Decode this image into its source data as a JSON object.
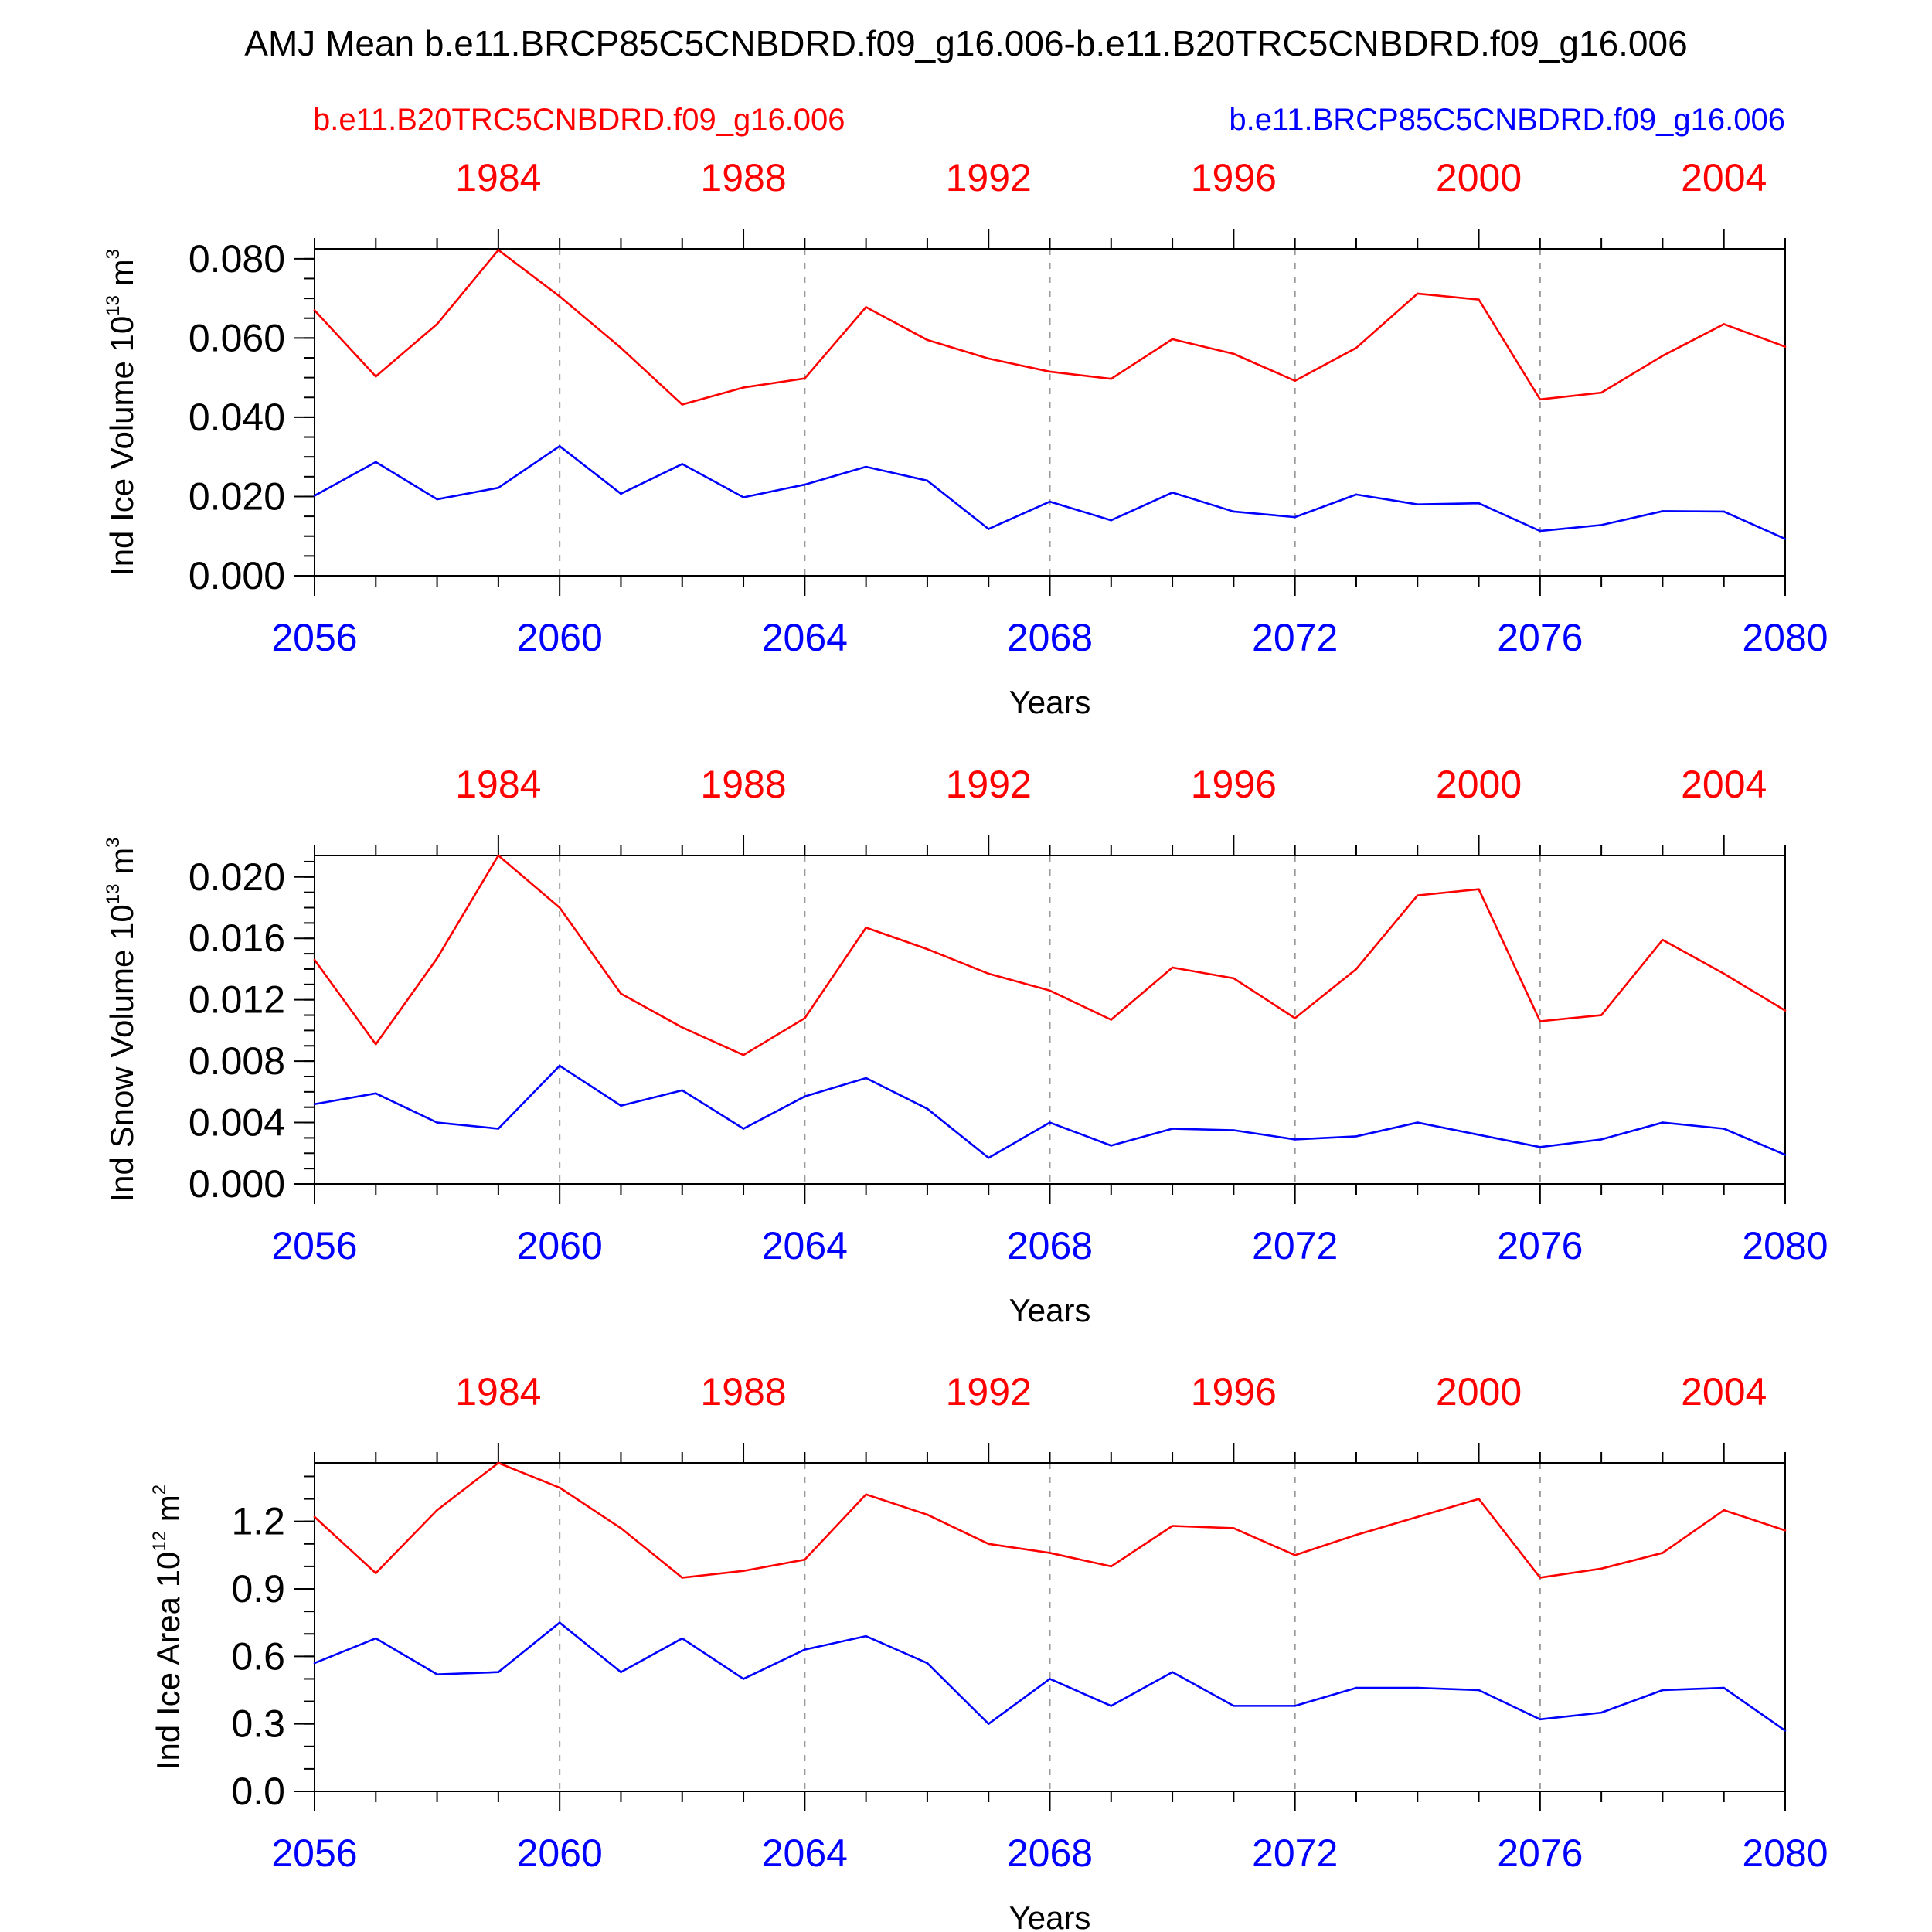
{
  "colors": {
    "red": "#ff0000",
    "blue": "#0000ff",
    "axis": "#000000",
    "grid": "#999999"
  },
  "title": "AMJ Mean b.e11.BRCP85C5CNBDRD.f09_g16.006-b.e11.B20TRC5CNBDRD.f09_g16.006",
  "legend": {
    "red_run": "b.e11.B20TRC5CNBDRD.f09_g16.006",
    "blue_run": "b.e11.BRCP85C5CNBDRD.f09_g16.006"
  },
  "chart_data": [
    {
      "type": "line",
      "ylabel": {
        "main": "Ind Ice Volume 10",
        "sup1": "13",
        "mid": " m",
        "sup2": "3"
      },
      "xlabel": "Years",
      "x": [
        2056,
        2057,
        2058,
        2059,
        2060,
        2061,
        2062,
        2063,
        2064,
        2065,
        2066,
        2067,
        2068,
        2069,
        2070,
        2071,
        2072,
        2073,
        2074,
        2075,
        2076,
        2077,
        2078,
        2079,
        2080
      ],
      "xlim": [
        2056,
        2080
      ],
      "bottom_ticks": [
        "2056",
        "2060",
        "2064",
        "2068",
        "2072",
        "2076",
        "2080"
      ],
      "top_ticks": [
        "1984",
        "1988",
        "1992",
        "1996",
        "2000",
        "2004"
      ],
      "ylim": [
        0,
        0.0825
      ],
      "y_ticks": [
        0,
        0.02,
        0.04,
        0.06,
        0.08
      ],
      "y_tick_labels": [
        "0.000",
        "0.020",
        "0.040",
        "0.060",
        "0.080"
      ],
      "y_minor": 0.005,
      "series": [
        {
          "name": "b.e11.B20TRC5CNBDRD.f09_g16.006",
          "color": "red",
          "values": [
            0.067,
            0.0503,
            0.0635,
            0.0822,
            0.0705,
            0.0575,
            0.0432,
            0.0475,
            0.0498,
            0.0678,
            0.0595,
            0.0548,
            0.0515,
            0.0497,
            0.0597,
            0.056,
            0.0492,
            0.0575,
            0.0712,
            0.0697,
            0.0445,
            0.0462,
            0.0555,
            0.0635,
            0.0578
          ]
        },
        {
          "name": "b.e11.BRCP85C5CNBDRD.f09_g16.006",
          "color": "blue",
          "values": [
            0.0202,
            0.0287,
            0.0193,
            0.0222,
            0.0327,
            0.0207,
            0.0282,
            0.0198,
            0.023,
            0.0275,
            0.024,
            0.0118,
            0.0187,
            0.014,
            0.021,
            0.0162,
            0.0148,
            0.0205,
            0.018,
            0.0183,
            0.0113,
            0.0128,
            0.0163,
            0.0162,
            0.0093
          ]
        }
      ]
    },
    {
      "type": "line",
      "ylabel": {
        "main": "Ind Snow Volume 10",
        "sup1": "13",
        "mid": " m",
        "sup2": "3"
      },
      "xlabel": "Years",
      "x": [
        2056,
        2057,
        2058,
        2059,
        2060,
        2061,
        2062,
        2063,
        2064,
        2065,
        2066,
        2067,
        2068,
        2069,
        2070,
        2071,
        2072,
        2073,
        2074,
        2075,
        2076,
        2077,
        2078,
        2079,
        2080
      ],
      "xlim": [
        2056,
        2080
      ],
      "bottom_ticks": [
        "2056",
        "2060",
        "2064",
        "2068",
        "2072",
        "2076",
        "2080"
      ],
      "top_ticks": [
        "1984",
        "1988",
        "1992",
        "1996",
        "2000",
        "2004"
      ],
      "ylim": [
        0,
        0.0214
      ],
      "y_ticks": [
        0,
        0.004,
        0.008,
        0.012,
        0.016,
        0.02
      ],
      "y_tick_labels": [
        "0.000",
        "0.004",
        "0.008",
        "0.012",
        "0.016",
        "0.020"
      ],
      "y_minor": 0.001,
      "series": [
        {
          "name": "b.e11.B20TRC5CNBDRD.f09_g16.006",
          "color": "red",
          "values": [
            0.0146,
            0.0091,
            0.0147,
            0.0214,
            0.018,
            0.0124,
            0.0102,
            0.0084,
            0.0108,
            0.0167,
            0.0153,
            0.0137,
            0.0126,
            0.0107,
            0.0141,
            0.0134,
            0.0108,
            0.014,
            0.0188,
            0.0192,
            0.0106,
            0.011,
            0.0159,
            0.0137,
            0.0113
          ]
        },
        {
          "name": "b.e11.BRCP85C5CNBDRD.f09_g16.006",
          "color": "blue",
          "values": [
            0.0052,
            0.0059,
            0.004,
            0.0036,
            0.0077,
            0.0051,
            0.0061,
            0.0036,
            0.0057,
            0.0069,
            0.0049,
            0.0017,
            0.004,
            0.0025,
            0.0036,
            0.0035,
            0.0029,
            0.0031,
            0.004,
            0.0032,
            0.0024,
            0.0029,
            0.004,
            0.0036,
            0.0019
          ]
        }
      ]
    },
    {
      "type": "line",
      "ylabel": {
        "main": "Ind Ice Area 10",
        "sup1": "12",
        "mid": " m",
        "sup2": "2"
      },
      "xlabel": "Years",
      "x": [
        2056,
        2057,
        2058,
        2059,
        2060,
        2061,
        2062,
        2063,
        2064,
        2065,
        2066,
        2067,
        2068,
        2069,
        2070,
        2071,
        2072,
        2073,
        2074,
        2075,
        2076,
        2077,
        2078,
        2079,
        2080
      ],
      "xlim": [
        2056,
        2080
      ],
      "bottom_ticks": [
        "2056",
        "2060",
        "2064",
        "2068",
        "2072",
        "2076",
        "2080"
      ],
      "top_ticks": [
        "1984",
        "1988",
        "1992",
        "1996",
        "2000",
        "2004"
      ],
      "ylim": [
        0,
        1.46
      ],
      "y_ticks": [
        0,
        0.3,
        0.6,
        0.9,
        1.2
      ],
      "y_tick_labels": [
        "0.0",
        "0.3",
        "0.6",
        "0.9",
        "1.2"
      ],
      "y_minor": 0.1,
      "series": [
        {
          "name": "b.e11.B20TRC5CNBDRD.f09_g16.006",
          "color": "red",
          "values": [
            1.22,
            0.97,
            1.25,
            1.46,
            1.35,
            1.17,
            0.95,
            0.98,
            1.03,
            1.32,
            1.23,
            1.1,
            1.06,
            1.0,
            1.18,
            1.17,
            1.05,
            1.14,
            1.22,
            1.3,
            0.95,
            0.99,
            1.06,
            1.25,
            1.16
          ]
        },
        {
          "name": "b.e11.BRCP85C5CNBDRD.f09_g16.006",
          "color": "blue",
          "values": [
            0.57,
            0.68,
            0.52,
            0.53,
            0.75,
            0.53,
            0.68,
            0.5,
            0.63,
            0.69,
            0.57,
            0.3,
            0.5,
            0.38,
            0.53,
            0.38,
            0.38,
            0.46,
            0.46,
            0.45,
            0.32,
            0.35,
            0.45,
            0.46,
            0.27
          ]
        }
      ]
    }
  ]
}
